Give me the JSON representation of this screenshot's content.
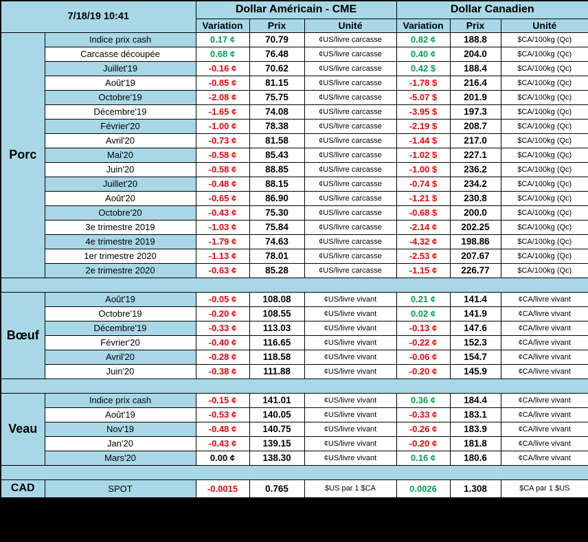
{
  "colors": {
    "band_blue": "#a8d8e6",
    "positive": "#00a24c",
    "negative": "#fb0007",
    "neutral": "#000000"
  },
  "chart_data": {
    "type": "table",
    "timestamp": "7/18/19 10:41",
    "column_groups": [
      {
        "title": "Dollar Américain - CME",
        "columns": [
          "Variation",
          "Prix",
          "Unité"
        ]
      },
      {
        "title": "Dollar Canadien",
        "columns": [
          "Variation",
          "Prix",
          "Unité"
        ]
      }
    ],
    "row_columns": [
      "label",
      "us_variation",
      "us_prix",
      "us_unite",
      "ca_variation",
      "ca_prix",
      "ca_unite"
    ],
    "sections": [
      {
        "name": "Porc",
        "rows": [
          [
            "Indice prix cash",
            "0.17 ¢",
            "70.79",
            "¢US/livre carcasse",
            "0.82 ¢",
            "188.8",
            "$CA/100kg (Qc)"
          ],
          [
            "Carcasse découpée",
            "0.68 ¢",
            "76.48",
            "¢US/livre carcasse",
            "0.40 ¢",
            "204.0",
            "$CA/100kg (Qc)"
          ],
          [
            "Juillet'19",
            "-0.16 ¢",
            "70.62",
            "¢US/livre carcasse",
            "0.42 $",
            "188.4",
            "$CA/100kg (Qc)"
          ],
          [
            "Août'19",
            "-0.85 ¢",
            "81.15",
            "¢US/livre carcasse",
            "-1.78 $",
            "216.4",
            "$CA/100kg (Qc)"
          ],
          [
            "Octobre'19",
            "-2.08 ¢",
            "75.75",
            "¢US/livre carcasse",
            "-5.07 $",
            "201.9",
            "$CA/100kg (Qc)"
          ],
          [
            "Décembre'19",
            "-1.65 ¢",
            "74.08",
            "¢US/livre carcasse",
            "-3.95 $",
            "197.3",
            "$CA/100kg (Qc)"
          ],
          [
            "Février'20",
            "-1.00 ¢",
            "78.38",
            "¢US/livre carcasse",
            "-2.19 $",
            "208.7",
            "$CA/100kg (Qc)"
          ],
          [
            "Avril'20",
            "-0.73 ¢",
            "81.58",
            "¢US/livre carcasse",
            "-1.44 $",
            "217.0",
            "$CA/100kg (Qc)"
          ],
          [
            "Mai'20",
            "-0.58 ¢",
            "85.43",
            "¢US/livre carcasse",
            "-1.02 $",
            "227.1",
            "$CA/100kg (Qc)"
          ],
          [
            "Juin'20",
            "-0.58 ¢",
            "88.85",
            "¢US/livre carcasse",
            "-1.00 $",
            "236.2",
            "$CA/100kg (Qc)"
          ],
          [
            "Juillet'20",
            "-0.48 ¢",
            "88.15",
            "¢US/livre carcasse",
            "-0.74 $",
            "234.2",
            "$CA/100kg (Qc)"
          ],
          [
            "Août'20",
            "-0.65 ¢",
            "86.90",
            "¢US/livre carcasse",
            "-1.21 $",
            "230.8",
            "$CA/100kg (Qc)"
          ],
          [
            "Octobre'20",
            "-0.43 ¢",
            "75.30",
            "¢US/livre carcasse",
            "-0.68 $",
            "200.0",
            "$CA/100kg (Qc)"
          ],
          [
            "3e trimestre 2019",
            "-1.03 ¢",
            "75.84",
            "¢US/livre carcasse",
            "-2.14 ¢",
            "202.25",
            "$CA/100kg (Qc)"
          ],
          [
            "4e trimestre 2019",
            "-1.79 ¢",
            "74.63",
            "¢US/livre carcasse",
            "-4.32 ¢",
            "198.86",
            "$CA/100kg (Qc)"
          ],
          [
            "1er trimestre 2020",
            "-1.13 ¢",
            "78.01",
            "¢US/livre carcasse",
            "-2.53 ¢",
            "207.67",
            "$CA/100kg (Qc)"
          ],
          [
            "2e trimestre 2020",
            "-0.63 ¢",
            "85.28",
            "¢US/livre carcasse",
            "-1.15 ¢",
            "226.77",
            "$CA/100kg (Qc)"
          ]
        ]
      },
      {
        "name": "Bœuf",
        "rows": [
          [
            "Août'19",
            "-0.05 ¢",
            "108.08",
            "¢US/livre vivant",
            "0.21 ¢",
            "141.4",
            "¢CA/livre vivant"
          ],
          [
            "Octobre'19",
            "-0.20 ¢",
            "108.55",
            "¢US/livre vivant",
            "0.02 ¢",
            "141.9",
            "¢CA/livre vivant"
          ],
          [
            "Décembre'19",
            "-0.33 ¢",
            "113.03",
            "¢US/livre vivant",
            "-0.13 ¢",
            "147.6",
            "¢CA/livre vivant"
          ],
          [
            "Février'20",
            "-0.40 ¢",
            "116.65",
            "¢US/livre vivant",
            "-0.22 ¢",
            "152.3",
            "¢CA/livre vivant"
          ],
          [
            "Avril'20",
            "-0.28 ¢",
            "118.58",
            "¢US/livre vivant",
            "-0.06 ¢",
            "154.7",
            "¢CA/livre vivant"
          ],
          [
            "Juin'20",
            "-0.38 ¢",
            "111.88",
            "¢US/livre vivant",
            "-0.20 ¢",
            "145.9",
            "¢CA/livre vivant"
          ]
        ]
      },
      {
        "name": "Veau",
        "rows": [
          [
            "Indice prix cash",
            "-0.15 ¢",
            "141.01",
            "¢US/livre vivant",
            "0.36 ¢",
            "184.4",
            "¢CA/livre vivant"
          ],
          [
            "Août'19",
            "-0.53 ¢",
            "140.05",
            "¢US/livre vivant",
            "-0.33 ¢",
            "183.1",
            "¢CA/livre vivant"
          ],
          [
            "Nov'19",
            "-0.48 ¢",
            "140.75",
            "¢US/livre vivant",
            "-0.26 ¢",
            "183.9",
            "¢CA/livre vivant"
          ],
          [
            "Jan'20",
            "-0.43 ¢",
            "139.15",
            "¢US/livre vivant",
            "-0.20 ¢",
            "181.8",
            "¢CA/livre vivant"
          ],
          [
            "Mars'20",
            "0.00 ¢",
            "138.30",
            "¢US/livre vivant",
            "0.16 ¢",
            "180.6",
            "¢CA/livre vivant"
          ]
        ]
      },
      {
        "name": "CAD",
        "rows": [
          [
            "SPOT",
            "-0.0015",
            "0.765",
            "$US par 1 $CA",
            "0.0026",
            "1.308",
            "$CA par 1 $US"
          ]
        ]
      }
    ]
  }
}
